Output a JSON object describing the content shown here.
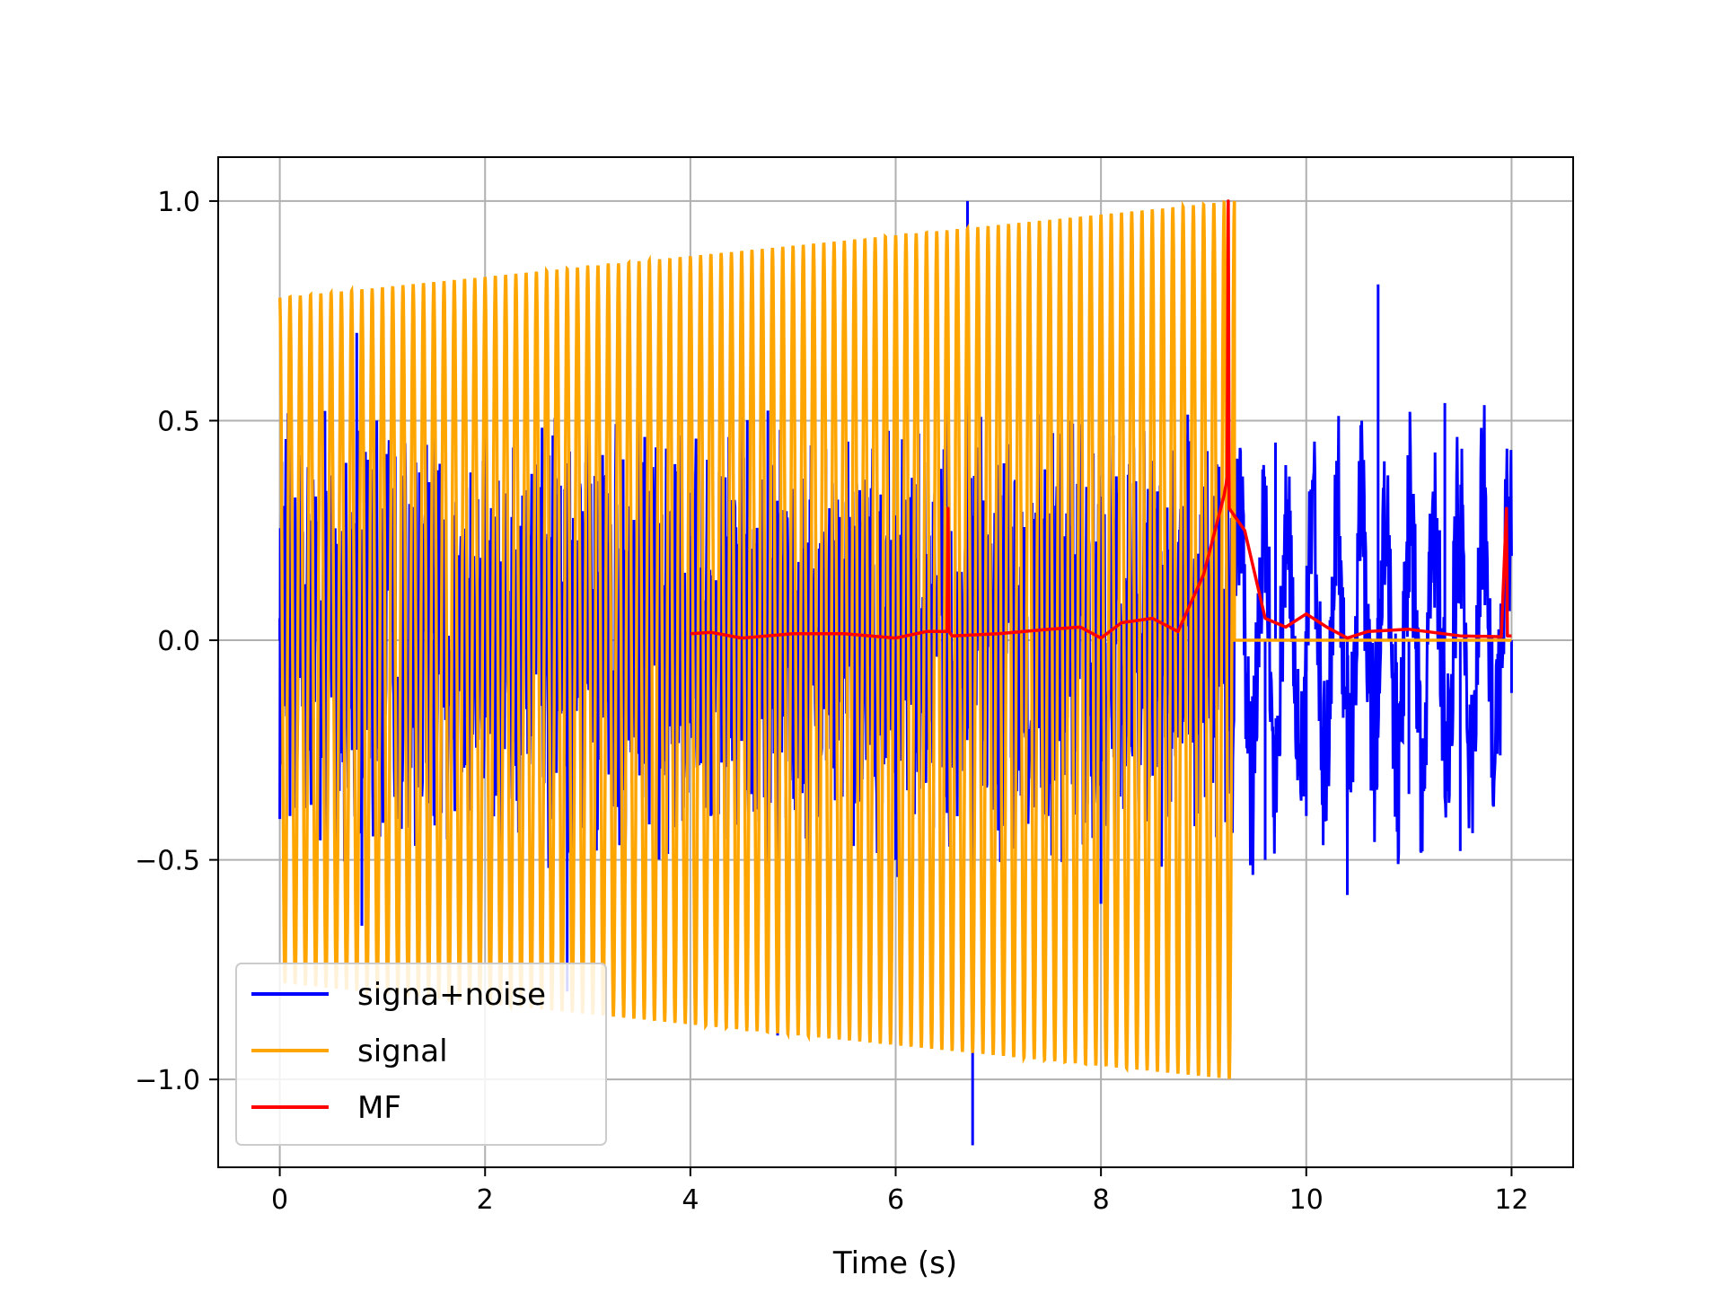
{
  "chart_data": {
    "type": "line",
    "title": "",
    "xlabel": "Time (s)",
    "ylabel": "",
    "xlim": [
      -0.6,
      12.6
    ],
    "ylim": [
      -1.2,
      1.1
    ],
    "x_ticks": [
      0,
      2,
      4,
      6,
      8,
      10,
      12
    ],
    "x_tick_labels": [
      "0",
      "2",
      "4",
      "6",
      "8",
      "10",
      "12"
    ],
    "y_ticks": [
      -1.0,
      -0.5,
      0.0,
      0.5,
      1.0
    ],
    "y_tick_labels": [
      "−1.0",
      "−0.5",
      "0.0",
      "0.5",
      "1.0"
    ],
    "grid": true,
    "legend_position": "lower-left",
    "series": [
      {
        "name": "signa+noise",
        "color": "#0000ff",
        "description_points": {
          "x": [
            0.0,
            0.05,
            0.1,
            0.15,
            0.5,
            0.75,
            0.8,
            1.0,
            1.5,
            2.0,
            2.8,
            3.5,
            4.2,
            4.85,
            5.0,
            6.0,
            6.5,
            6.7,
            6.75,
            7.0,
            8.0,
            9.0,
            9.3,
            9.6,
            9.7,
            10.0,
            10.4,
            10.7,
            11.0,
            11.35,
            11.5,
            12.0
          ],
          "y": [
            0.05,
            0.2,
            -0.4,
            0.1,
            0.35,
            0.7,
            -0.65,
            0.3,
            -0.4,
            0.55,
            -0.8,
            0.6,
            -0.4,
            -0.9,
            0.2,
            -0.5,
            0.55,
            1.0,
            -1.15,
            0.35,
            -0.6,
            0.35,
            0.55,
            -0.5,
            0.45,
            -0.4,
            -0.58,
            0.81,
            -0.35,
            0.54,
            -0.48,
            -0.12
          ]
        }
      },
      {
        "name": "signal",
        "color": "#ffa500",
        "chirp": {
          "t_start": 0.0,
          "t_end": 9.3,
          "amp_start": 0.78,
          "amp_end": 1.0,
          "cycles": 93
        },
        "after_end_value": 0.0,
        "x_end": 12.0
      },
      {
        "name": "MF",
        "color": "#ff0000",
        "x": [
          4.0,
          4.2,
          4.5,
          5.0,
          5.5,
          6.0,
          6.3,
          6.5,
          6.51,
          6.52,
          6.55,
          7.0,
          7.5,
          7.8,
          8.0,
          8.2,
          8.5,
          8.75,
          9.0,
          9.2,
          9.23,
          9.24,
          9.25,
          9.4,
          9.6,
          9.8,
          10.0,
          10.2,
          10.4,
          10.6,
          11.0,
          11.5,
          11.9,
          11.95,
          11.96,
          12.0
        ],
        "y": [
          0.015,
          0.018,
          0.005,
          0.015,
          0.015,
          0.005,
          0.02,
          0.02,
          0.3,
          0.02,
          0.01,
          0.015,
          0.025,
          0.03,
          0.005,
          0.04,
          0.05,
          0.02,
          0.15,
          0.33,
          0.37,
          1.0,
          0.3,
          0.25,
          0.05,
          0.03,
          0.06,
          0.03,
          0.005,
          0.02,
          0.025,
          0.01,
          0.008,
          0.3,
          0.01,
          0.01
        ]
      }
    ]
  }
}
